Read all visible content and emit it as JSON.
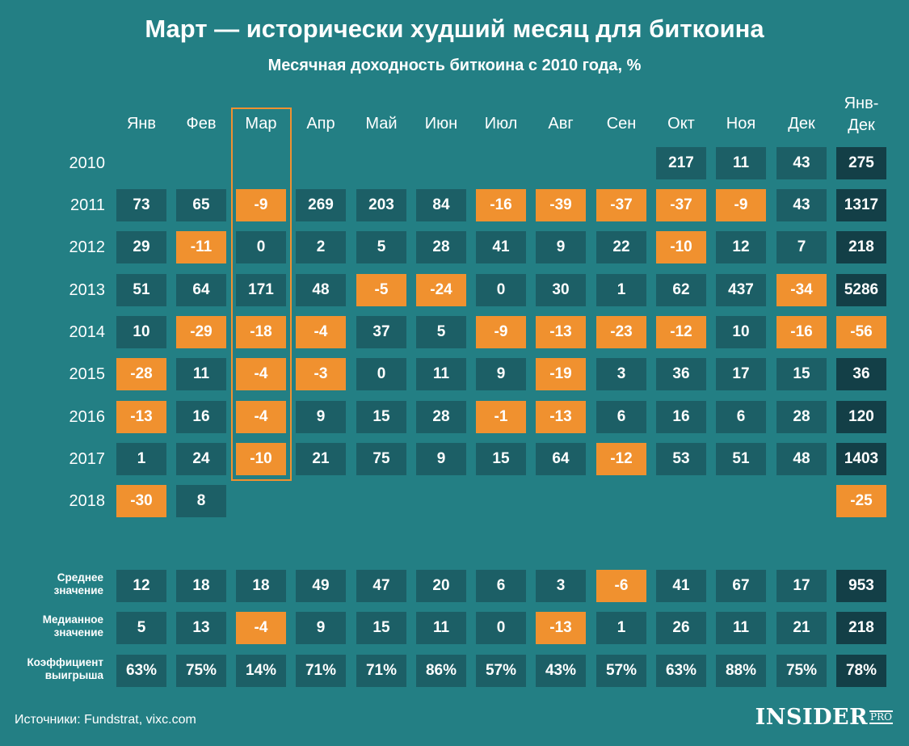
{
  "title": "Март — исторически худший месяц для биткоина",
  "subtitle": "Месячная доходность биткоина с 2010 года, %",
  "source": "Источники: Fundstrat, vixc.com",
  "logo": {
    "main": "INSIDER",
    "suffix": "PRO"
  },
  "colors": {
    "background": "#237f84",
    "positive": "#1c5f66",
    "negative": "#f0912f",
    "total": "#133f47",
    "highlight": "#f0912f"
  },
  "chart_data": {
    "type": "table",
    "title": "Март — исторически худший месяц для биткоина",
    "subtitle": "Месячная доходность биткоина с 2010 года, %",
    "columns": [
      "Янв",
      "Фев",
      "Мар",
      "Апр",
      "Май",
      "Июн",
      "Июл",
      "Авг",
      "Сен",
      "Окт",
      "Ноя",
      "Дек",
      "Янв-Дек"
    ],
    "highlighted_column": "Мар",
    "rows": [
      {
        "label": "2010",
        "values": [
          null,
          null,
          null,
          null,
          null,
          null,
          null,
          null,
          null,
          217,
          11,
          43,
          275
        ]
      },
      {
        "label": "2011",
        "values": [
          73,
          65,
          -9,
          269,
          203,
          84,
          -16,
          -39,
          -37,
          -37,
          -9,
          43,
          1317
        ]
      },
      {
        "label": "2012",
        "values": [
          29,
          -11,
          0,
          2,
          5,
          28,
          41,
          9,
          22,
          -10,
          12,
          7,
          218
        ]
      },
      {
        "label": "2013",
        "values": [
          51,
          64,
          171,
          48,
          -5,
          -24,
          0,
          30,
          1,
          62,
          437,
          -34,
          5286
        ]
      },
      {
        "label": "2014",
        "values": [
          10,
          -29,
          -18,
          -4,
          37,
          5,
          -9,
          -13,
          -23,
          -12,
          10,
          -16,
          -56
        ]
      },
      {
        "label": "2015",
        "values": [
          -28,
          11,
          -4,
          -3,
          0,
          11,
          9,
          -19,
          3,
          36,
          17,
          15,
          36
        ]
      },
      {
        "label": "2016",
        "values": [
          -13,
          16,
          -4,
          9,
          15,
          28,
          -1,
          -13,
          6,
          16,
          6,
          28,
          120
        ]
      },
      {
        "label": "2017",
        "values": [
          1,
          24,
          -10,
          21,
          75,
          9,
          15,
          64,
          -12,
          53,
          51,
          48,
          1403
        ]
      },
      {
        "label": "2018",
        "values": [
          -30,
          8,
          null,
          null,
          null,
          null,
          null,
          null,
          null,
          null,
          null,
          null,
          -25
        ]
      }
    ],
    "stats": [
      {
        "label_lines": [
          "Среднее",
          "значение"
        ],
        "values": [
          "12",
          "18",
          "18",
          "49",
          "47",
          "20",
          "6",
          "3",
          "-6",
          "41",
          "67",
          "17",
          "953"
        ]
      },
      {
        "label_lines": [
          "Медианное",
          "значение"
        ],
        "values": [
          "5",
          "13",
          "-4",
          "9",
          "15",
          "11",
          "0",
          "-13",
          "1",
          "26",
          "11",
          "21",
          "218"
        ]
      },
      {
        "label_lines": [
          "Коэффициент",
          "выигрыша"
        ],
        "values": [
          "63%",
          "75%",
          "14%",
          "71%",
          "71%",
          "86%",
          "57%",
          "43%",
          "57%",
          "63%",
          "88%",
          "75%",
          "78%"
        ]
      }
    ],
    "negative_cells_in_stats": [
      [
        0,
        8
      ],
      [
        1,
        2
      ],
      [
        1,
        7
      ]
    ]
  }
}
